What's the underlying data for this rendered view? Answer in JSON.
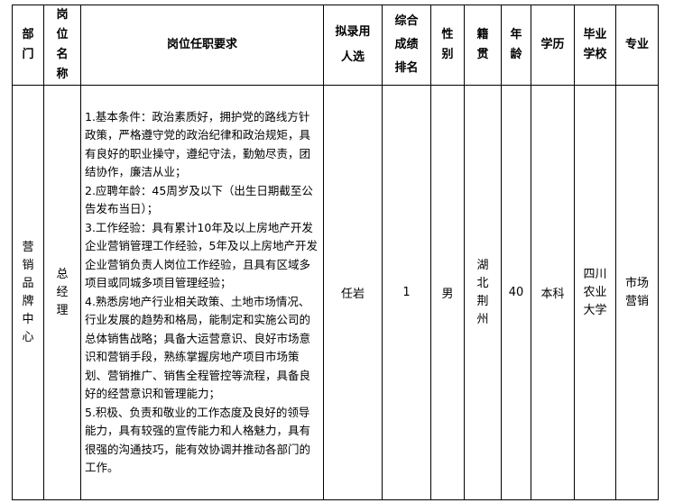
{
  "headers": [
    "部\n门",
    "岗\n位\n名\n称",
    "岗位任职要求",
    "拟录用\n人选",
    "综合\n成绩\n排名",
    "性\n别",
    "籍\n贯",
    "年\n龄",
    "学历",
    "毕业\n学校",
    "专业"
  ],
  "row": {
    "department": "营\n销\n品\n牌\n中\n心",
    "position": "总\n经\n理",
    "requirements": "1.基本条件：政治素质好，拥护党的路线方针政策，严格遵守党的政治纪律和政治规矩，具有良好的职业操守，遵纪守法，勤勉尽责，团结协作，廉洁从业；\n2.应聘年龄：45周岁及以下（出生日期截至公告发布当日）；\n3.工作经验：具有累计10年及以上房地产开发企业营销管理工作经验，5年及以上房地产开发企业营销负责人岗位工作经验，且具有区域多项目或同城多项目管理经验；\n4.熟悉房地产行业相关政策、土地市场情况、行业发展的趋势和格局，能制定和实施公司的总体销售战略；具备大运营意识、良好市场意识和营销手段，熟练掌握房地产项目市场策划、营销推广、销售全程管控等流程，具备良好的经营意识和管理能力；\n5.积极、负责和敬业的工作态度及良好的领导能力，具有较强的宣传能力和人格魅力，具有很强的沟通技巧，能有效协调并推动各部门的工作。",
    "candidate": "任岩",
    "rank": "1",
    "gender": "男",
    "origin": "湖\n北\n荆\n州",
    "age": "40",
    "education": "本科",
    "school": "四川\n农业\n大学",
    "major": "市场\n营销"
  }
}
